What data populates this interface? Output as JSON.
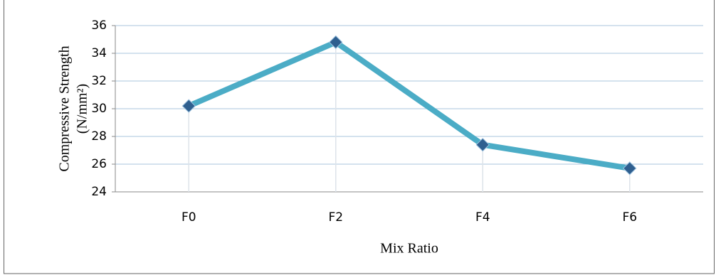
{
  "chart_data": {
    "type": "line",
    "y_label": [
      "Compressive Strength",
      "(N/mm²)"
    ],
    "x_label": "Mix Ratio",
    "categories": [
      "F0",
      "F2",
      "F4",
      "F6"
    ],
    "series": [
      {
        "name": "Compressive Strength",
        "color": "#4bacc6",
        "values": [
          30.2,
          34.8,
          27.4,
          25.7
        ]
      }
    ],
    "marker_color": "#2f5f8f",
    "ylim": [
      24,
      36
    ],
    "yticks": [
      24,
      26,
      28,
      30,
      32,
      34,
      36
    ],
    "grid": true,
    "drop_lines": true
  }
}
